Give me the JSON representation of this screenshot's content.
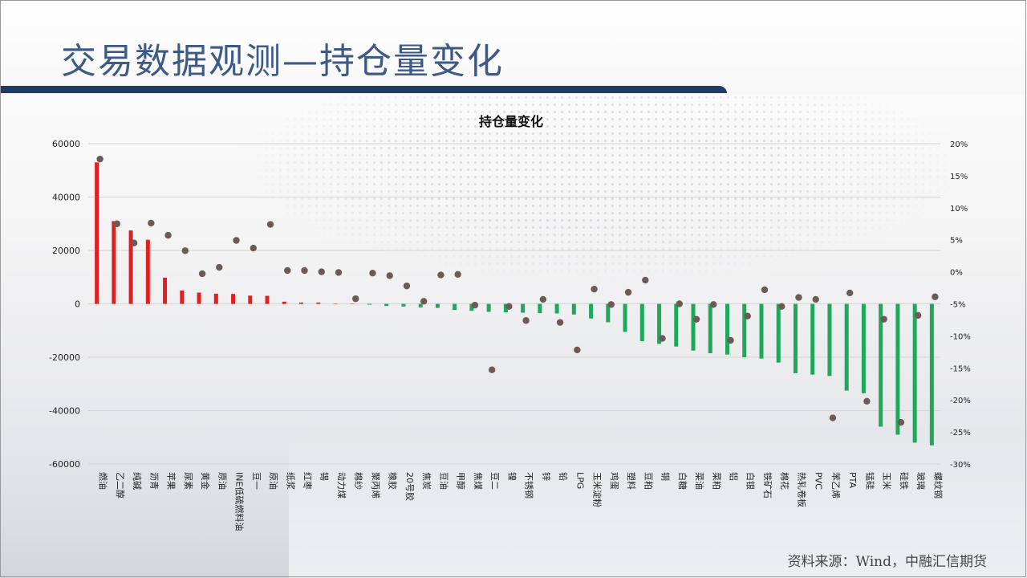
{
  "page": {
    "title": "交易数据观测—持仓量变化",
    "source": "资料来源：Wind，中融汇信期货"
  },
  "chart_data": {
    "type": "bar",
    "title": "持仓量变化",
    "categories": [
      "燃油",
      "乙二醇",
      "纯碱",
      "沥青",
      "苹果",
      "尿素",
      "黄金",
      "原油",
      "INE低硫燃料油",
      "豆一",
      "原油",
      "纸浆",
      "红枣",
      "锡",
      "动力煤",
      "棉纱",
      "聚丙烯",
      "橡胶",
      "20号胶",
      "焦炭",
      "豆油",
      "甲醇",
      "焦煤",
      "豆二",
      "镍",
      "不锈钢",
      "锌",
      "铅",
      "LPG",
      "玉米淀粉",
      "鸡蛋",
      "塑料",
      "豆粕",
      "铜",
      "白糖",
      "菜油",
      "菜粕",
      "铝",
      "白银",
      "铁矿石",
      "棉花",
      "热轧卷板",
      "PVC",
      "苯乙烯",
      "PTA",
      "锰硅",
      "玉米",
      "硅铁",
      "玻璃",
      "螺纹钢"
    ],
    "series": [
      {
        "type": "bar",
        "axis": "left",
        "values": [
          53000,
          31000,
          27500,
          24000,
          9800,
          5000,
          4200,
          3800,
          3700,
          3100,
          3000,
          800,
          500,
          500,
          0,
          0,
          -300,
          -800,
          -1000,
          -1300,
          -1500,
          -2300,
          -2600,
          -3000,
          -3200,
          -3300,
          -3500,
          -3600,
          -4000,
          -5500,
          -6900,
          -10500,
          -14000,
          -15000,
          -16000,
          -17500,
          -18500,
          -19000,
          -20000,
          -20500,
          -22000,
          -26000,
          -26500,
          -27000,
          -32500,
          -33500,
          -46000,
          -49000,
          -52000,
          -53000
        ]
      },
      {
        "type": "scatter",
        "axis": "right",
        "values": [
          17.6,
          7.5,
          4.5,
          7.6,
          5.7,
          3.3,
          -0.3,
          0.7,
          4.9,
          3.7,
          7.4,
          0.2,
          0.2,
          0.0,
          -0.1,
          -4.2,
          -0.2,
          -0.6,
          -2.2,
          -4.6,
          -0.5,
          -0.4,
          -5.2,
          -15.3,
          -5.4,
          -7.6,
          -4.3,
          -7.9,
          -12.2,
          -2.7,
          -5.1,
          -3.2,
          -1.3,
          -10.4,
          -5.0,
          -7.4,
          -5.1,
          -10.7,
          -6.9,
          -2.8,
          -5.4,
          -4.0,
          -4.3,
          -22.8,
          -3.3,
          -20.2,
          -7.4,
          -23.5,
          -6.8,
          -3.9
        ]
      }
    ],
    "ylim": [
      -60000,
      60000
    ],
    "yticks": [
      -60000,
      -40000,
      -20000,
      0,
      20000,
      40000,
      60000
    ],
    "y2lim": [
      -30,
      20
    ],
    "y2ticks": [
      -30,
      -25,
      -20,
      -15,
      -10,
      -5,
      0,
      5,
      10,
      15,
      20
    ],
    "y2_tick_labels": [
      "-30%",
      "-25%",
      "-20%",
      "-15%",
      "-10%",
      "-5%",
      "0%",
      "5%",
      "10%",
      "15%",
      "20%"
    ],
    "grid": true,
    "colors": {
      "positive": "#e02020",
      "negative": "#1fa85a",
      "dot": "#6b5a55"
    }
  }
}
